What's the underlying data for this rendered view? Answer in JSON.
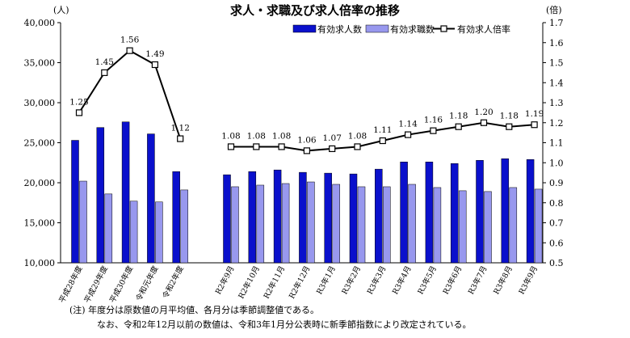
{
  "title": "求人・求職及び求人倍率の推移",
  "left_unit": "(人)",
  "right_unit": "(倍)",
  "notes": [
    "(注) 年度分は原数値の月平均値、各月分は季節調整値である。",
    "なお、令和2年12月以前の数値は、令和3年1月分公表時に新季節指数により改定されている。"
  ],
  "colors": {
    "offers": "#0a10cc",
    "seekers": "#9898ee",
    "ratio": "#000000"
  },
  "chart_data": {
    "type": "bar",
    "title": "求人・求職及び求人倍率の推移",
    "categories": [
      "平成28年度",
      "平成29年度",
      "平成30年度",
      "令和元年度",
      "令和2年度",
      "R2年9月",
      "R2年10月",
      "R2年11月",
      "R2年12月",
      "R3年1月",
      "R3年2月",
      "R3年3月",
      "R3年4月",
      "R3年5月",
      "R3年6月",
      "R3年7月",
      "R3年8月",
      "R3年9月"
    ],
    "y_left": {
      "label": "(人)",
      "range": [
        10000,
        40000
      ],
      "ticks": [
        10000,
        15000,
        20000,
        25000,
        30000,
        35000,
        40000
      ]
    },
    "y_right": {
      "label": "(倍)",
      "range": [
        0.5,
        1.7
      ],
      "ticks": [
        0.5,
        0.6,
        0.7,
        0.8,
        0.9,
        1.0,
        1.1,
        1.2,
        1.3,
        1.4,
        1.5,
        1.6,
        1.7
      ]
    },
    "legend_position": "top-right",
    "series": [
      {
        "name": "有効求人数",
        "type": "bar",
        "axis": "left",
        "values": [
          25300,
          26900,
          27600,
          26100,
          21400,
          21000,
          21400,
          21600,
          21300,
          21200,
          21100,
          21700,
          22600,
          22600,
          22400,
          22800,
          23000,
          22900
        ]
      },
      {
        "name": "有効求職数",
        "type": "bar",
        "axis": "left",
        "values": [
          20200,
          18600,
          17700,
          17600,
          19100,
          19500,
          19700,
          19900,
          20100,
          19800,
          19500,
          19500,
          19800,
          19400,
          19000,
          18900,
          19400,
          19200
        ]
      },
      {
        "name": "有効求人倍率",
        "type": "line",
        "axis": "right",
        "values": [
          1.25,
          1.45,
          1.56,
          1.49,
          1.12,
          1.08,
          1.08,
          1.08,
          1.06,
          1.07,
          1.08,
          1.11,
          1.14,
          1.16,
          1.18,
          1.2,
          1.18,
          1.19
        ],
        "labels": [
          "1.25",
          "1.45",
          "1.56",
          "1.49",
          "1.12",
          "1.08",
          "1.08",
          "1.08",
          "1.06",
          "1.07",
          "1.08",
          "1.11",
          "1.14",
          "1.16",
          "1.18",
          "1.20",
          "1.18",
          "1.19"
        ],
        "segments": [
          [
            0,
            4
          ],
          [
            5,
            17
          ]
        ]
      }
    ]
  }
}
